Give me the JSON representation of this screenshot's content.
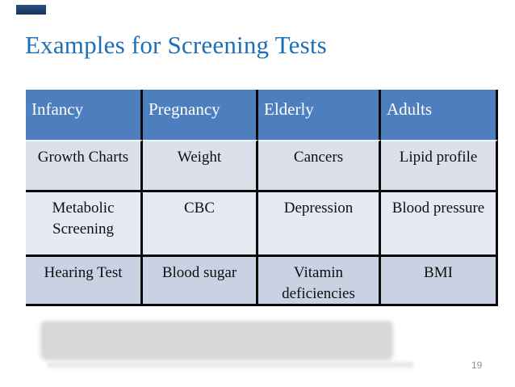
{
  "slide": {
    "title": "Examples for Screening Tests",
    "page_number": "19",
    "colors": {
      "title_text": "#1d70b7",
      "accent_bar": "#16335f",
      "table_header_bg": "#4d7fbe",
      "table_header_text": "#ffffff",
      "row_band_1": "#dce0eb",
      "row_band_2": "#e7eaf2",
      "row_band_3": "#c9d1e2",
      "table_border": "#0b0b0b",
      "redaction_gray": "#d8d8d8"
    }
  },
  "table": {
    "columns": [
      "Infancy",
      "Pregnancy",
      "Elderly",
      "Adults"
    ],
    "rows": [
      [
        "Growth Charts",
        "Weight",
        "Cancers",
        "Lipid profile"
      ],
      [
        "Metabolic Screening",
        "CBC",
        "Depression",
        "Blood pressure"
      ],
      [
        "Hearing Test",
        "Blood sugar",
        "Vitamin deficiencies",
        "BMI"
      ]
    ]
  }
}
